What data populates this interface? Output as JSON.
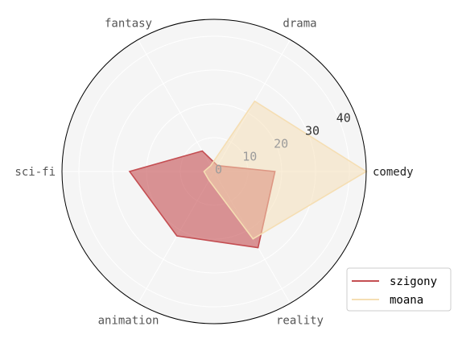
{
  "chart_data": {
    "type": "radar",
    "categories": [
      "comedy",
      "drama",
      "fantasy",
      "sci-fi",
      "animation",
      "reality"
    ],
    "rlim": [
      0,
      45
    ],
    "r_ticks": [
      0,
      10,
      20,
      30,
      40
    ],
    "r_tick_labels": [
      "0",
      "10",
      "20",
      "30",
      "40"
    ],
    "grid": true,
    "legend_position": "bottom-right",
    "series": [
      {
        "name": "szigony",
        "values": [
          18,
          2,
          7,
          25,
          22,
          26
        ],
        "color": "#c44e52"
      },
      {
        "name": "moana",
        "values": [
          45,
          24,
          2,
          3,
          3,
          23
        ],
        "color": "#f5deb3"
      }
    ]
  },
  "colors": {
    "panel_background": "#f5f5f5",
    "grid": "#ffffff",
    "outline": "#000000",
    "tick_label": "#555555",
    "r_tick_label": "#9c9c9c"
  }
}
